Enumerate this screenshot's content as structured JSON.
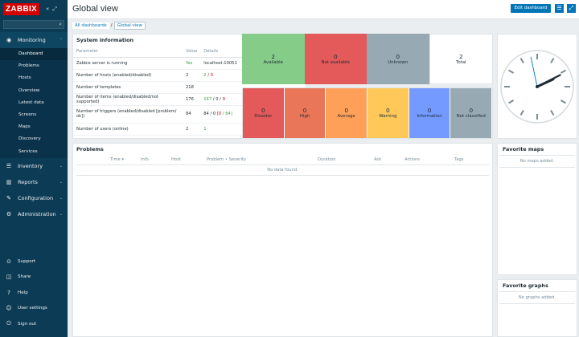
{
  "sidebar": {
    "logo": "ZABBIX",
    "collapse_glyph": "«",
    "kiosk_glyph": "⤢",
    "sections": [
      {
        "label": "Monitoring",
        "icon": "eye-icon",
        "glyph": "◉"
      },
      {
        "label": "Inventory",
        "icon": "list-icon",
        "glyph": "☰"
      },
      {
        "label": "Reports",
        "icon": "bar-chart-icon",
        "glyph": "▥"
      },
      {
        "label": "Configuration",
        "icon": "wrench-icon",
        "glyph": "✎"
      },
      {
        "label": "Administration",
        "icon": "gear-icon",
        "glyph": "⚙"
      }
    ],
    "monitoring_items": [
      "Dashboard",
      "Problems",
      "Hosts",
      "Overview",
      "Latest data",
      "Screens",
      "Maps",
      "Discovery",
      "Services"
    ],
    "bottom_items": [
      {
        "label": "Support",
        "icon": "support-icon",
        "glyph": "⊙"
      },
      {
        "label": "Share",
        "icon": "share-icon",
        "glyph": "◫"
      },
      {
        "label": "Help",
        "icon": "help-icon",
        "glyph": "?"
      },
      {
        "label": "User settings",
        "icon": "user-icon",
        "glyph": "☺"
      },
      {
        "label": "Sign out",
        "icon": "power-icon",
        "glyph": "⏻"
      }
    ]
  },
  "header": {
    "title": "Global view",
    "edit_label": "Edit dashboard",
    "breadcrumbs": [
      "All dashboards",
      "Global view"
    ]
  },
  "system_info": {
    "title": "System information",
    "columns": [
      "Parameter",
      "Value",
      "Details"
    ],
    "rows": [
      {
        "param": "Zabbix server is running",
        "value": "Yes",
        "details": "localhost:10051",
        "d2": "",
        "d3": ""
      },
      {
        "param": "Number of hosts (enabled/disabled)",
        "value": "2",
        "details": "2",
        "d2": " / ",
        "d3": "0"
      },
      {
        "param": "Number of templates",
        "value": "218",
        "details": "",
        "d2": "",
        "d3": ""
      },
      {
        "param": "Number of items (enabled/disabled/not supported)",
        "value": "176",
        "details": "167",
        "d2": " / 0 / ",
        "d3": "9"
      },
      {
        "param": "Number of triggers (enabled/disabled [problem/ ok])",
        "value": "84",
        "details": "84 / 0 [",
        "d2": "0",
        "d3": " / 84]"
      },
      {
        "param": "Number of users (online)",
        "value": "2",
        "details": "1",
        "d2": "",
        "d3": ""
      }
    ]
  },
  "host_availability": [
    {
      "count": "2",
      "label": "Available",
      "color": "#86cc89"
    },
    {
      "count": "0",
      "label": "Not available",
      "color": "#e45959"
    },
    {
      "count": "0",
      "label": "Unknown",
      "color": "#97aab3"
    },
    {
      "count": "2",
      "label": "Total",
      "color": "#ffffff"
    }
  ],
  "severities": [
    {
      "count": "0",
      "label": "Disaster",
      "color": "#e45959"
    },
    {
      "count": "0",
      "label": "High",
      "color": "#e97659"
    },
    {
      "count": "0",
      "label": "Average",
      "color": "#ffa059"
    },
    {
      "count": "0",
      "label": "Warning",
      "color": "#ffc859"
    },
    {
      "count": "0",
      "label": "Information",
      "color": "#7499ff"
    },
    {
      "count": "0",
      "label": "Not classified",
      "color": "#97aab3"
    }
  ],
  "problems": {
    "title": "Problems",
    "columns": [
      "Time ▾",
      "Info",
      "Host",
      "Problem • Severity",
      "Duration",
      "Ack",
      "Actions",
      "Tags"
    ],
    "empty": "No data found."
  },
  "favorite_maps": {
    "title": "Favorite maps",
    "empty": "No maps added."
  },
  "favorite_graphs": {
    "title": "Favorite graphs",
    "empty": "No graphs added."
  },
  "clock": {
    "hours": 2,
    "minutes": 10.5,
    "seconds": 58
  }
}
